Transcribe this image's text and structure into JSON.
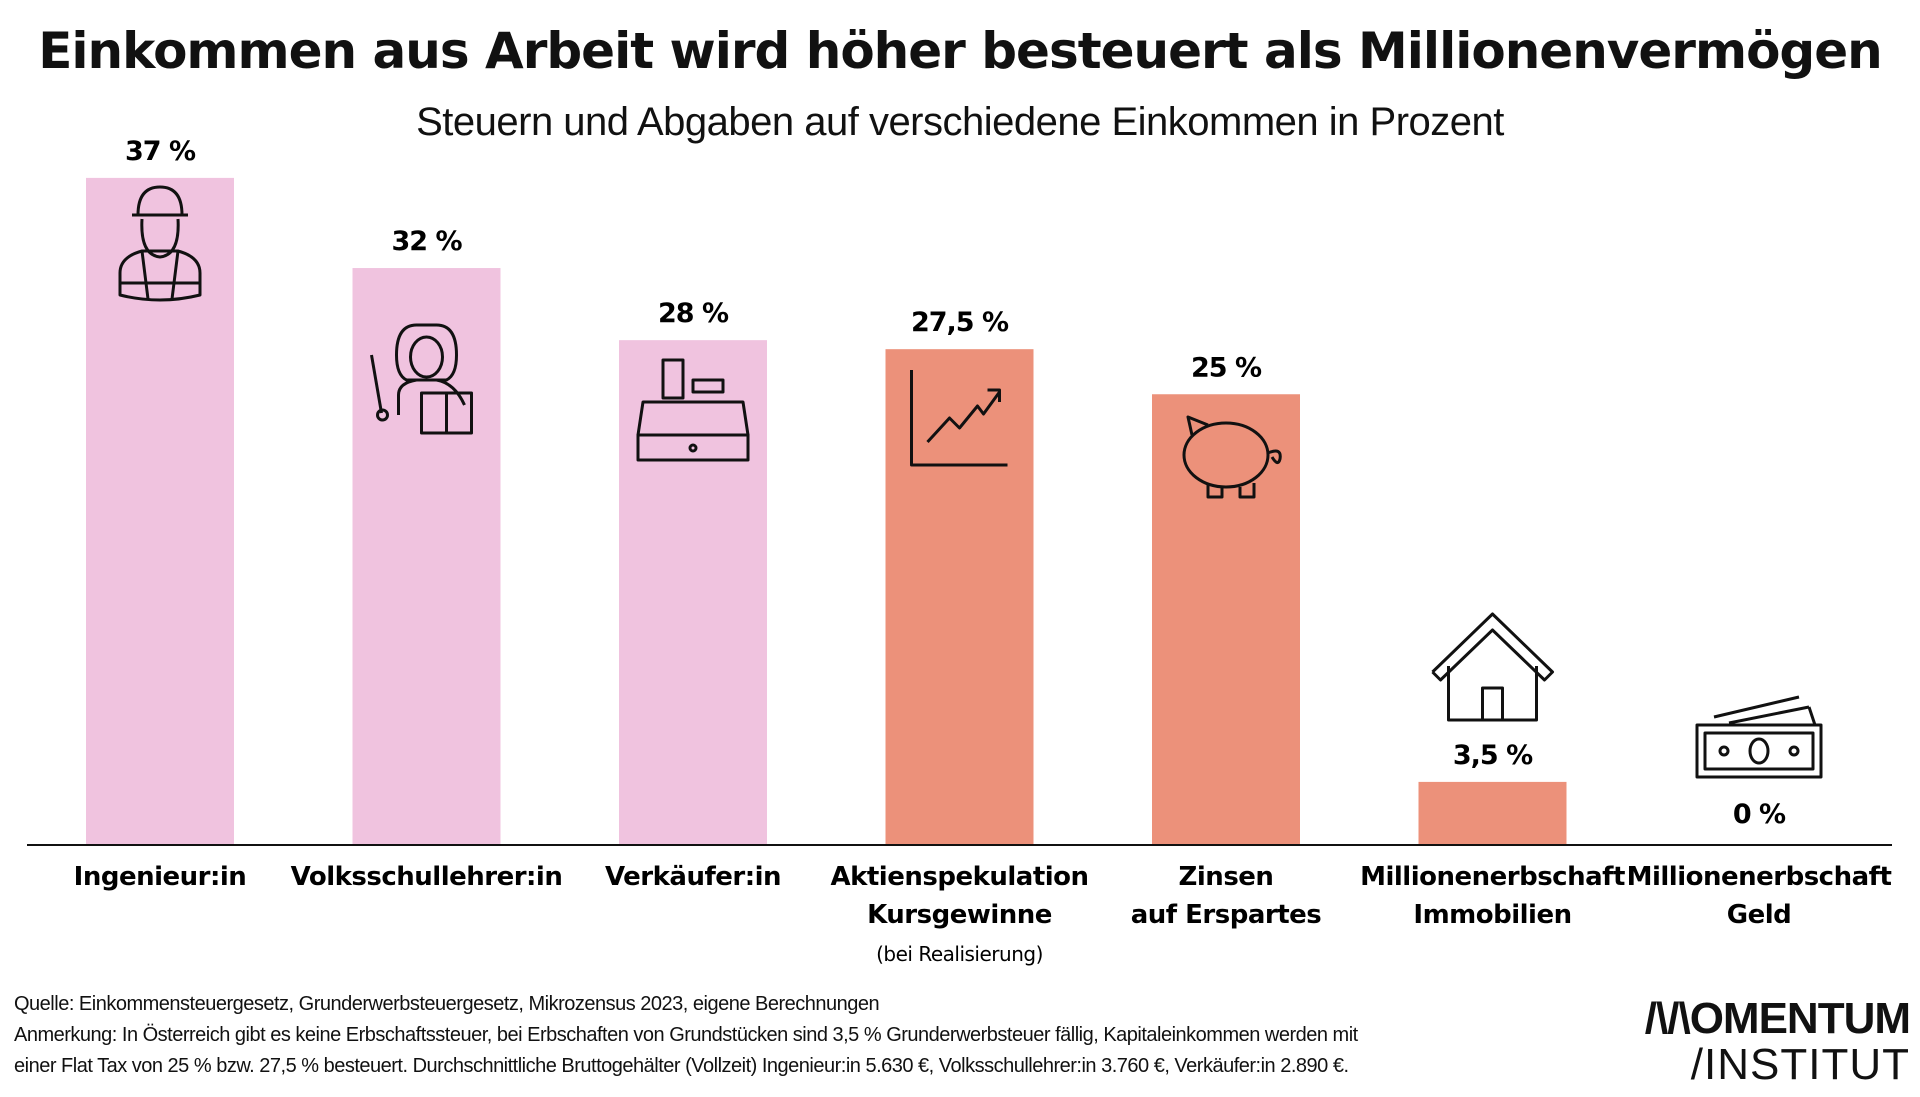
{
  "chart_data": {
    "type": "bar",
    "title": "Einkommen aus Arbeit wird höher besteuert als Millionenvermögen",
    "subtitle": "Steuern und Abgaben auf verschiedene Einkommen in Prozent",
    "categories": [
      [
        "Ingenieur:in"
      ],
      [
        "Volksschullehrer:in"
      ],
      [
        "Verkäufer:in"
      ],
      [
        "Aktienspekulation",
        "Kursgewinne",
        "(bei Realisierung)"
      ],
      [
        "Zinsen",
        "auf Erspartes"
      ],
      [
        "Millionenerbschaft",
        "Immobilien"
      ],
      [
        "Millionenerbschaft",
        "Geld"
      ]
    ],
    "values": [
      37,
      32,
      28,
      27.5,
      25,
      3.5,
      0
    ],
    "value_labels": [
      "37 %",
      "32 %",
      "28 %",
      "27,5 %",
      "25 %",
      "3,5 %",
      "0 %"
    ],
    "icons": [
      "engineer-icon",
      "teacher-icon",
      "cash-register-icon",
      "stock-chart-icon",
      "piggy-bank-icon",
      "house-icon",
      "banknote-icon"
    ],
    "bar_colors": [
      "#f0c3df",
      "#f0c3df",
      "#f0c3df",
      "#ec917a",
      "#ec917a",
      "#ec917a",
      "#ec917a"
    ],
    "ylim": [
      0,
      37
    ],
    "grid": false,
    "legend": "none"
  },
  "footer": {
    "source": "Quelle: Einkommensteuergesetz, Grunderwerbsteuergesetz, Mikrozensus 2023, eigene Berechnungen",
    "note_line1": "Anmerkung: In Österreich gibt es keine Erbschaftssteuer, bei Erbschaften von Grundstücken sind 3,5 % Grunderwerbsteuer fällig, Kapitaleinkommen werden mit",
    "note_line2": "einer Flat Tax von 25 % bzw. 27,5 % besteuert. Durchschnittliche Bruttogehälter (Vollzeit) Ingenieur:in 5.630 €, Volksschullehrer:in 3.760 €, Verkäufer:in 2.890 €."
  },
  "logo": {
    "line1": "/\\/\\OMENTUM",
    "line2": "/INSTITUT"
  }
}
